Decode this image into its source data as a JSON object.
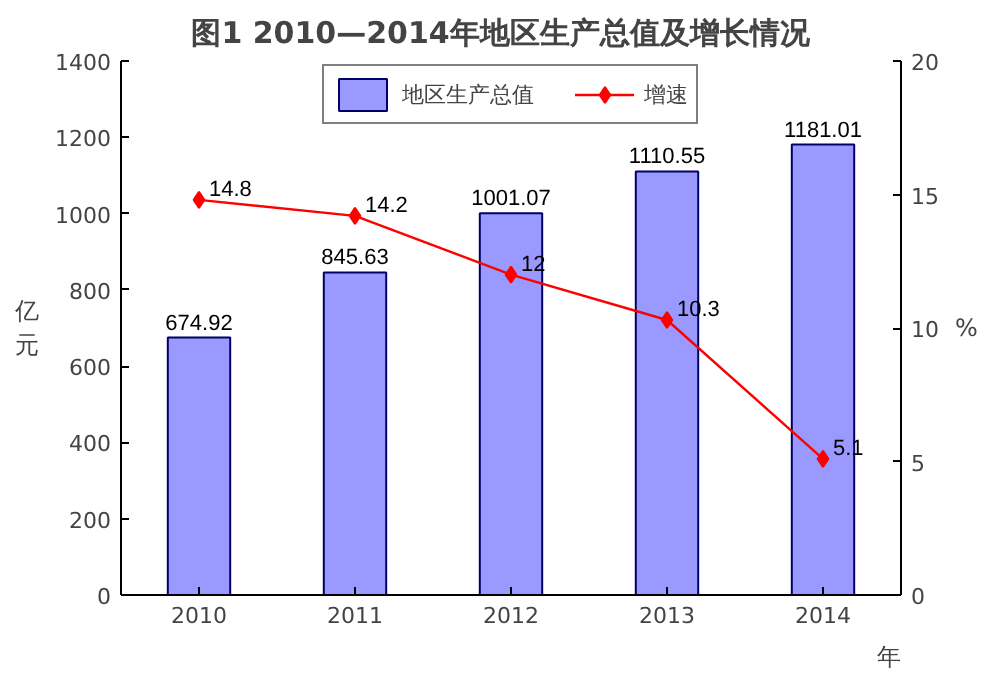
{
  "chart_data": {
    "type": "bar",
    "title": "图1   2010—2014年地区生产总值及增长情况",
    "xlabel": "年",
    "ylabel": "亿元",
    "y2label": "%",
    "categories": [
      "2010",
      "2011",
      "2012",
      "2013",
      "2014"
    ],
    "series": [
      {
        "name": "地区生产总值",
        "color": "#9999ff",
        "values": [
          674.92,
          845.63,
          1001.07,
          1110.55,
          1181.01
        ]
      },
      {
        "name": "增速",
        "type": "line",
        "axis": "y2",
        "color": "#ff0000",
        "marker": "diamond",
        "values": [
          14.8,
          14.2,
          12,
          10.3,
          5.1
        ]
      }
    ],
    "ylim": [
      0,
      1400
    ],
    "yticks": [
      0,
      200,
      400,
      600,
      800,
      1000,
      1200,
      1400
    ],
    "y2lim": [
      0,
      20
    ],
    "y2ticks": [
      0,
      5,
      10,
      15,
      20
    ],
    "data_labels": true,
    "grid": false,
    "legend": "top"
  }
}
